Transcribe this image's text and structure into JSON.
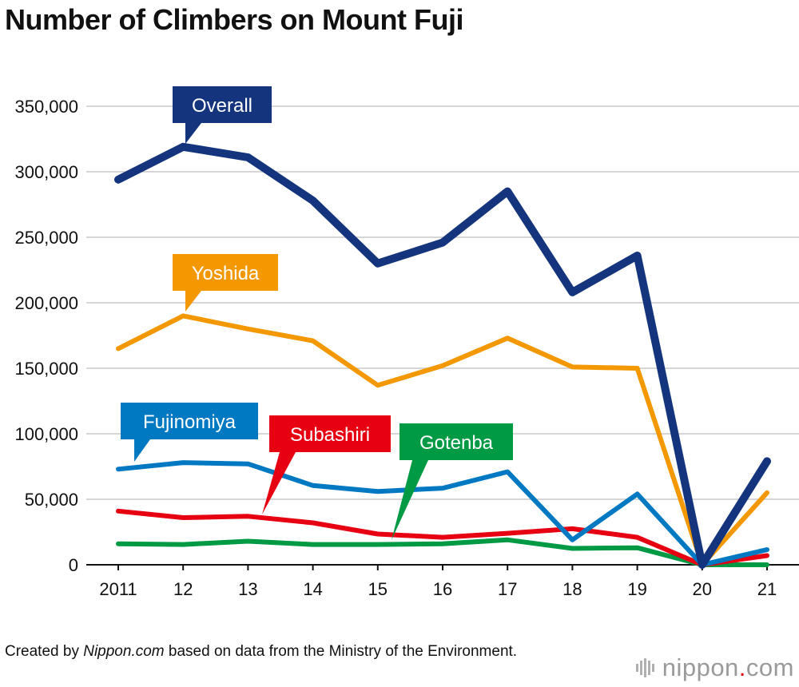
{
  "title": "Number of Climbers on Mount Fuji",
  "credit": {
    "prefix": "Created by ",
    "source": "Nippon.com",
    "suffix": " based on data from the Ministry of the Environment."
  },
  "logo": {
    "name": "nippon",
    "dot": ".",
    "tld": "com"
  },
  "chart_data": {
    "type": "line",
    "title": "Number of Climbers on Mount Fuji",
    "xlabel": "",
    "ylabel": "",
    "categories": [
      "2011",
      "12",
      "13",
      "14",
      "15",
      "16",
      "17",
      "18",
      "19",
      "20",
      "21"
    ],
    "ylim": [
      0,
      350000
    ],
    "yticks": [
      0,
      50000,
      100000,
      150000,
      200000,
      250000,
      300000,
      350000
    ],
    "ytick_labels": [
      "0",
      "50,000",
      "100,000",
      "150,000",
      "200,000",
      "250,000",
      "300,000",
      "350,000"
    ],
    "grid": true,
    "legend": "callout labels on lines",
    "series": [
      {
        "name": "Gotenba",
        "color": "#009a44",
        "values": [
          16000,
          15500,
          18000,
          15500,
          15500,
          16000,
          19000,
          12500,
          13000,
          0,
          0
        ]
      },
      {
        "name": "Subashiri",
        "color": "#e60012",
        "values": [
          41000,
          36000,
          37000,
          32000,
          23500,
          21000,
          24000,
          27500,
          21000,
          0,
          7000
        ]
      },
      {
        "name": "Fujinomiya",
        "color": "#0079c2",
        "values": [
          73000,
          78000,
          77000,
          60500,
          56000,
          58500,
          71000,
          19000,
          54000,
          0,
          11500
        ]
      },
      {
        "name": "Yoshida",
        "color": "#f39800",
        "values": [
          165000,
          190000,
          180000,
          171000,
          137000,
          152000,
          173000,
          151000,
          150000,
          0,
          55000
        ]
      },
      {
        "name": "Overall",
        "color": "#14357e",
        "values": [
          294000,
          319000,
          311000,
          278000,
          230000,
          246000,
          285000,
          208000,
          236000,
          0,
          79000
        ]
      }
    ]
  }
}
